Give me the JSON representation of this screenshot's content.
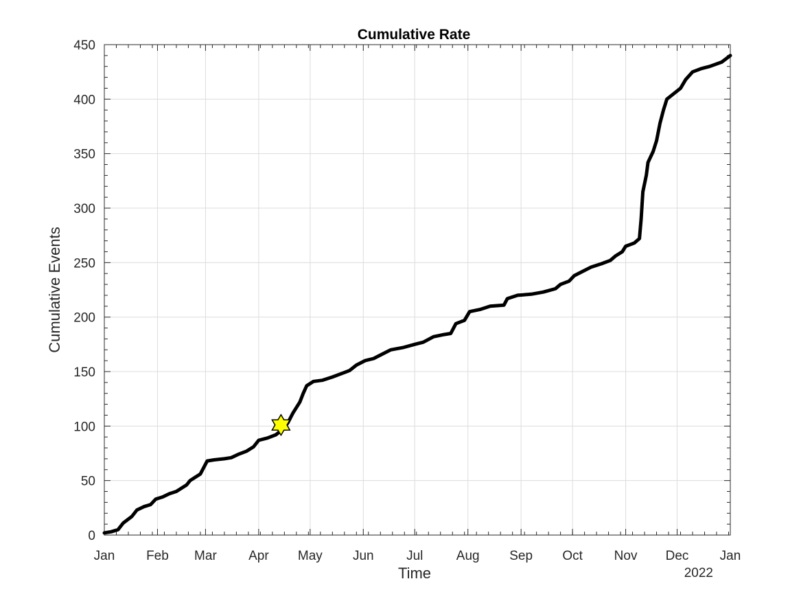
{
  "chart_data": {
    "type": "line",
    "title": "Cumulative Rate",
    "xlabel": "Time",
    "ylabel": "Cumulative Events",
    "x_axis_kind": "date",
    "xlim": [
      "2021-01-01",
      "2022-01-01"
    ],
    "ylim": [
      0,
      450
    ],
    "yticks": [
      0,
      50,
      100,
      150,
      200,
      250,
      300,
      350,
      400,
      450
    ],
    "xticks": [
      {
        "date": "2021-01-01",
        "label": "Jan"
      },
      {
        "date": "2021-02-01",
        "label": "Feb"
      },
      {
        "date": "2021-03-01",
        "label": "Mar"
      },
      {
        "date": "2021-04-01",
        "label": "Apr"
      },
      {
        "date": "2021-05-01",
        "label": "May"
      },
      {
        "date": "2021-06-01",
        "label": "Jun"
      },
      {
        "date": "2021-07-01",
        "label": "Jul"
      },
      {
        "date": "2021-08-01",
        "label": "Aug"
      },
      {
        "date": "2021-09-01",
        "label": "Sep"
      },
      {
        "date": "2021-10-01",
        "label": "Oct"
      },
      {
        "date": "2021-11-01",
        "label": "Nov"
      },
      {
        "date": "2021-12-01",
        "label": "Dec"
      },
      {
        "date": "2022-01-01",
        "label": "Jan"
      }
    ],
    "x_secondary_label": "2022",
    "grid": true,
    "series": [
      {
        "color": "#000000",
        "points": [
          [
            "2021-01-01",
            2
          ],
          [
            "2021-01-05",
            3
          ],
          [
            "2021-01-09",
            5
          ],
          [
            "2021-01-12",
            11
          ],
          [
            "2021-01-17",
            17
          ],
          [
            "2021-01-20",
            23
          ],
          [
            "2021-01-24",
            26
          ],
          [
            "2021-01-28",
            28
          ],
          [
            "2021-01-31",
            33
          ],
          [
            "2021-02-04",
            35
          ],
          [
            "2021-02-08",
            38
          ],
          [
            "2021-02-12",
            40
          ],
          [
            "2021-02-15",
            43
          ],
          [
            "2021-02-18",
            46
          ],
          [
            "2021-02-20",
            50
          ],
          [
            "2021-02-23",
            53
          ],
          [
            "2021-02-26",
            56
          ],
          [
            "2021-02-28",
            62
          ],
          [
            "2021-03-02",
            68
          ],
          [
            "2021-03-06",
            69
          ],
          [
            "2021-03-12",
            70
          ],
          [
            "2021-03-16",
            71
          ],
          [
            "2021-03-20",
            74
          ],
          [
            "2021-03-25",
            77
          ],
          [
            "2021-03-29",
            81
          ],
          [
            "2021-04-01",
            87
          ],
          [
            "2021-04-06",
            89
          ],
          [
            "2021-04-11",
            92
          ],
          [
            "2021-04-15",
            97
          ],
          [
            "2021-04-18",
            103
          ],
          [
            "2021-04-21",
            112
          ],
          [
            "2021-04-25",
            122
          ],
          [
            "2021-04-27",
            130
          ],
          [
            "2021-04-29",
            137
          ],
          [
            "2021-05-03",
            141
          ],
          [
            "2021-05-08",
            142
          ],
          [
            "2021-05-14",
            145
          ],
          [
            "2021-05-19",
            148
          ],
          [
            "2021-05-24",
            151
          ],
          [
            "2021-05-28",
            156
          ],
          [
            "2021-06-02",
            160
          ],
          [
            "2021-06-07",
            162
          ],
          [
            "2021-06-12",
            166
          ],
          [
            "2021-06-17",
            170
          ],
          [
            "2021-06-24",
            172
          ],
          [
            "2021-07-01",
            175
          ],
          [
            "2021-07-06",
            177
          ],
          [
            "2021-07-12",
            182
          ],
          [
            "2021-07-18",
            184
          ],
          [
            "2021-07-22",
            185
          ],
          [
            "2021-07-25",
            194
          ],
          [
            "2021-07-30",
            197
          ],
          [
            "2021-08-02",
            205
          ],
          [
            "2021-08-08",
            207
          ],
          [
            "2021-08-14",
            210
          ],
          [
            "2021-08-22",
            211
          ],
          [
            "2021-08-24",
            217
          ],
          [
            "2021-08-30",
            220
          ],
          [
            "2021-09-07",
            221
          ],
          [
            "2021-09-14",
            223
          ],
          [
            "2021-09-21",
            226
          ],
          [
            "2021-09-24",
            230
          ],
          [
            "2021-09-29",
            233
          ],
          [
            "2021-10-02",
            238
          ],
          [
            "2021-10-07",
            242
          ],
          [
            "2021-10-12",
            246
          ],
          [
            "2021-10-18",
            249
          ],
          [
            "2021-10-23",
            252
          ],
          [
            "2021-10-26",
            256
          ],
          [
            "2021-10-30",
            260
          ],
          [
            "2021-11-01",
            265
          ],
          [
            "2021-11-06",
            268
          ],
          [
            "2021-11-09",
            272
          ],
          [
            "2021-11-10",
            290
          ],
          [
            "2021-11-11",
            315
          ],
          [
            "2021-11-13",
            330
          ],
          [
            "2021-11-14",
            342
          ],
          [
            "2021-11-17",
            352
          ],
          [
            "2021-11-19",
            362
          ],
          [
            "2021-11-21",
            378
          ],
          [
            "2021-11-23",
            390
          ],
          [
            "2021-11-25",
            400
          ],
          [
            "2021-11-29",
            405
          ],
          [
            "2021-12-03",
            410
          ],
          [
            "2021-12-06",
            418
          ],
          [
            "2021-12-10",
            425
          ],
          [
            "2021-12-15",
            428
          ],
          [
            "2021-12-20",
            430
          ],
          [
            "2021-12-27",
            434
          ],
          [
            "2022-01-01",
            440
          ]
        ]
      }
    ],
    "annotations": [
      {
        "marker": "hexagram",
        "date": "2021-04-14",
        "value": 101,
        "color": "#ffff00",
        "edgecolor": "#000000"
      }
    ]
  }
}
